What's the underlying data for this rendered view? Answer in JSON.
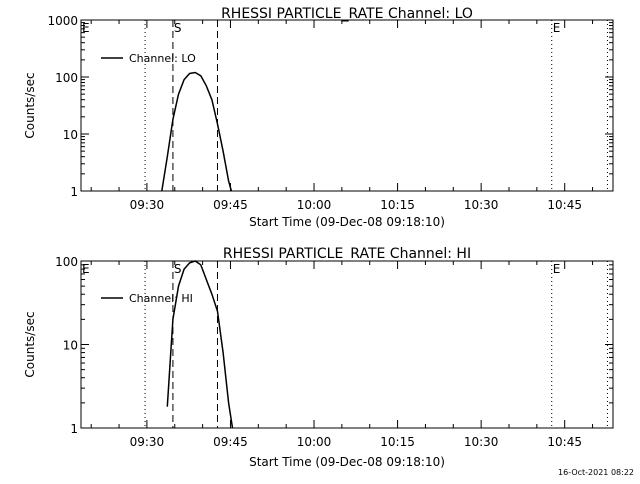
{
  "chart_data": [
    {
      "type": "line",
      "title": "RHESSI PARTICLE_RATE Channel: LO",
      "xlabel": "Start Time (09-Dec-08 09:18:10)",
      "ylabel": "Counts/sec",
      "yscale": "log",
      "ylim": [
        1,
        1000
      ],
      "xlim_minutes": [
        0,
        95.5
      ],
      "xtick_labels": [
        "09:30",
        "09:45",
        "10:00",
        "10:15",
        "10:30",
        "10:45"
      ],
      "ytick_labels": [
        "1",
        "10",
        "100",
        "1000"
      ],
      "grid": false,
      "legend": {
        "position": "top-left",
        "entries": [
          "Channel: LO"
        ]
      },
      "series": [
        {
          "name": "Channel: LO",
          "x_minutes": [
            14.5,
            15.5,
            16.5,
            17.5,
            18.5,
            19.5,
            20.5,
            21.5,
            22.5,
            23.5,
            24.5,
            25.5,
            26.5,
            27.0
          ],
          "values": [
            1,
            4,
            18,
            50,
            90,
            115,
            120,
            105,
            70,
            40,
            15,
            5,
            1.5,
            1
          ]
        }
      ],
      "markers": [
        {
          "label": "E",
          "x_minutes": 0,
          "style": "dotted"
        },
        {
          "label": "",
          "x_minutes": 11.5,
          "style": "dotted"
        },
        {
          "label": "S",
          "x_minutes": 16.5,
          "style": "dashed"
        },
        {
          "label": "",
          "x_minutes": 24.5,
          "style": "dashed"
        },
        {
          "label": "E",
          "x_minutes": 84.5,
          "style": "dotted"
        },
        {
          "label": "",
          "x_minutes": 94.5,
          "style": "dotted"
        }
      ]
    },
    {
      "type": "line",
      "title": "RHESSI PARTICLE_RATE Channel: HI",
      "xlabel": "Start Time (09-Dec-08 09:18:10)",
      "ylabel": "Counts/sec",
      "yscale": "log",
      "ylim": [
        1,
        100
      ],
      "xlim_minutes": [
        0,
        95.5
      ],
      "xtick_labels": [
        "09:30",
        "09:45",
        "10:00",
        "10:15",
        "10:30",
        "10:45"
      ],
      "ytick_labels": [
        "1",
        "10",
        "100"
      ],
      "grid": false,
      "legend": {
        "position": "top-left",
        "entries": [
          "Channel: HI"
        ]
      },
      "series": [
        {
          "name": "Channel: HI",
          "x_minutes": [
            15.5,
            16.0,
            16.5,
            17.5,
            18.5,
            19.5,
            20.5,
            21.5,
            22.5,
            23.5,
            24.5,
            25.5,
            26.5,
            27.2
          ],
          "values": [
            1.8,
            6,
            20,
            50,
            80,
            95,
            100,
            90,
            60,
            40,
            25,
            8,
            2,
            1
          ]
        }
      ],
      "markers": [
        {
          "label": "E",
          "x_minutes": 0,
          "style": "dotted"
        },
        {
          "label": "",
          "x_minutes": 11.5,
          "style": "dotted"
        },
        {
          "label": "S",
          "x_minutes": 16.5,
          "style": "dashed"
        },
        {
          "label": "",
          "x_minutes": 24.5,
          "style": "dashed"
        },
        {
          "label": "E",
          "x_minutes": 84.5,
          "style": "dotted"
        },
        {
          "label": "",
          "x_minutes": 94.5,
          "style": "dotted"
        }
      ]
    }
  ],
  "timestamp": "16-Oct-2021 08:22"
}
